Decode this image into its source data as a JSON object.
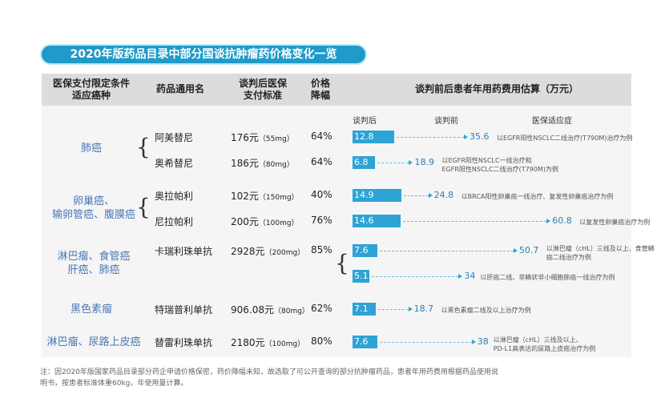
{
  "title": "2020年版药品目录中部分国谈抗肿瘤药价格变化一览",
  "headers": {
    "condition": [
      "医保支付限定条件",
      "适应癌种"
    ],
    "drug": "药品通用名",
    "price": [
      "谈判后医保",
      "支付标准"
    ],
    "drop": [
      "价格",
      "降幅"
    ],
    "cost": "谈判前后患者年用药费用估算（万元）"
  },
  "subheaders": {
    "after": "谈判后",
    "before": "谈判前",
    "indication": "医保适应症"
  },
  "conditions": [
    "肺癌",
    "卵巢癌、",
    "输卵管癌、腹膜癌",
    "淋巴瘤、食管癌",
    "肝癌、肺癌",
    "黑色素瘤",
    "淋巴瘤、尿路上皮癌"
  ],
  "rows": [
    {
      "drug": "阿美替尼",
      "price": "176元",
      "spec": "（55mg）",
      "drop": "64%",
      "after": "12.8",
      "before": "35.6",
      "note": [
        "以EGFR阳性NSCLC二线治疗(T790M)治疗为例"
      ]
    },
    {
      "drug": "奥希替尼",
      "price": "186元",
      "spec": "（80mg）",
      "drop": "64%",
      "after": "6.8",
      "before": "18.9",
      "note": [
        "以EGFR阳性NSCLC一线治疗和",
        "EGFR阳性NSCLC二线治疗(T790M)为例"
      ]
    },
    {
      "drug": "奥拉帕利",
      "price": "102元",
      "spec": "（150mg）",
      "drop": "40%",
      "after": "14.9",
      "before": "24.8",
      "note": [
        "以BRCA阳性卵巢癌一线治疗、复发性卵巢癌治疗为例"
      ]
    },
    {
      "drug": "尼拉帕利",
      "price": "200元",
      "spec": "（100mg）",
      "drop": "76%",
      "after": "14.6",
      "before": "60.8",
      "note": [
        "以复发性卵巢癌治疗为例"
      ]
    },
    {
      "drug": "卡瑞利珠单抗",
      "price": "2928元",
      "spec": "（200mg）",
      "drop": "85%",
      "after": "7.6",
      "before": "50.7",
      "note": [
        "以淋巴瘤（cHL）三线及以上、食管鳞",
        "癌二线治疗为例"
      ]
    },
    {
      "drug": "",
      "price": "",
      "spec": "",
      "drop": "",
      "after": "5.1",
      "before": "34",
      "note": [
        "以肝癌二线、非鳞状非小细胞肺癌一线治疗为例"
      ]
    },
    {
      "drug": "特瑞普利单抗",
      "price": "906.08元",
      "spec": "（80mg）",
      "drop": "62%",
      "after": "7.1",
      "before": "18.7",
      "note": [
        "以黑色素瘤二线及以上治疗为例"
      ]
    },
    {
      "drug": "替雷利珠单抗",
      "price": "2180元",
      "spec": "（100mg）",
      "drop": "80%",
      "after": "7.6",
      "before": "38",
      "note": [
        "以淋巴瘤（cHL）三线及以上、",
        "PD-L1高表达的尿路上皮癌治疗为例"
      ]
    }
  ],
  "footnote": [
    "注：因2020年版国家药品目录部分药企申请价格保密，药价降幅未知，故选取了可公开查询的部分抗肿瘤药品，患者年用药费用根据药品使用说",
    "明书，按患者标准体重60kg，年使用量计算。"
  ]
}
